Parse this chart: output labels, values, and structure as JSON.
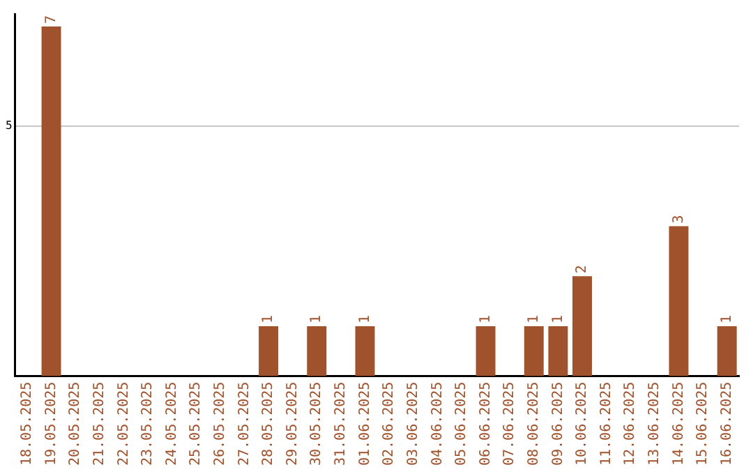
{
  "chart_data": {
    "type": "bar",
    "categories": [
      "18.05.2025",
      "19.05.2025",
      "20.05.2025",
      "21.05.2025",
      "22.05.2025",
      "23.05.2025",
      "24.05.2025",
      "25.05.2025",
      "26.05.2025",
      "27.05.2025",
      "28.05.2025",
      "29.05.2025",
      "30.05.2025",
      "31.05.2025",
      "01.06.2025",
      "02.06.2025",
      "03.06.2025",
      "04.06.2025",
      "05.06.2025",
      "06.06.2025",
      "07.06.2025",
      "08.06.2025",
      "09.06.2025",
      "10.06.2025",
      "11.06.2025",
      "12.06.2025",
      "13.06.2025",
      "14.06.2025",
      "15.06.2025",
      "16.06.2025"
    ],
    "values": [
      0,
      7,
      0,
      0,
      0,
      0,
      0,
      0,
      0,
      0,
      1,
      0,
      1,
      0,
      1,
      0,
      0,
      0,
      0,
      1,
      0,
      1,
      1,
      2,
      0,
      0,
      0,
      3,
      0,
      1
    ],
    "value_labels": [
      null,
      "7",
      null,
      null,
      null,
      null,
      null,
      null,
      null,
      null,
      "1",
      null,
      "1",
      null,
      "1",
      null,
      null,
      null,
      null,
      "1",
      null,
      "1",
      "1",
      "2",
      null,
      null,
      null,
      "3",
      null,
      "1"
    ],
    "color": "#a0522d",
    "ylim": [
      0,
      7.25
    ],
    "yticks": [
      5
    ],
    "grid": "y",
    "legend": false
  }
}
